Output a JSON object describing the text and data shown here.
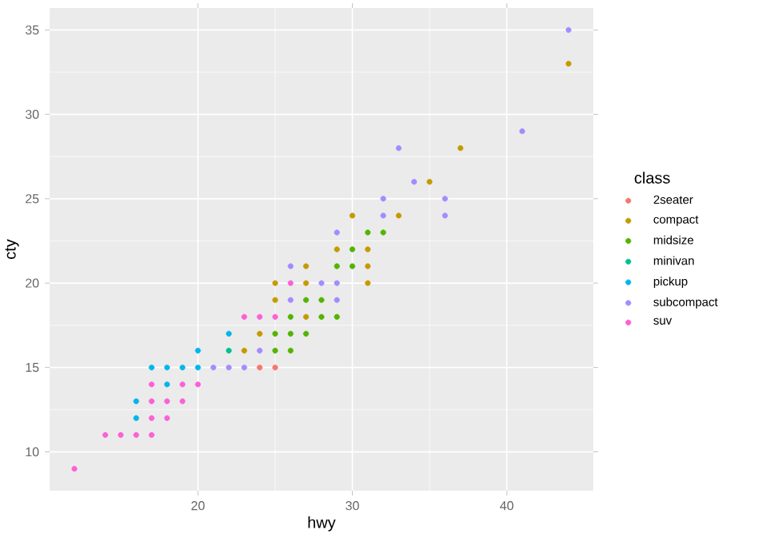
{
  "chart_data": {
    "type": "scatter",
    "xlabel": "hwy",
    "ylabel": "cty",
    "legend_title": "class",
    "xlim": [
      10.4,
      45.6
    ],
    "ylim": [
      7.7,
      36.3
    ],
    "xticks": [
      20,
      30,
      40
    ],
    "yticks": [
      10,
      15,
      20,
      25,
      30,
      35
    ],
    "grid": true,
    "legend": "right",
    "series": [
      {
        "name": "2seater",
        "color": "#F8766D",
        "x": [
          24,
          25
        ],
        "values": [
          15,
          15
        ]
      },
      {
        "name": "compact",
        "color": "#C49A00",
        "x": [
          23,
          24,
          27,
          25,
          25,
          27,
          31,
          27,
          31,
          29,
          31,
          30,
          33,
          35,
          37,
          44
        ],
        "values": [
          16,
          17,
          18,
          19,
          20,
          20,
          20,
          21,
          21,
          22,
          22,
          24,
          24,
          26,
          28,
          33
        ]
      },
      {
        "name": "midsize",
        "color": "#53B400",
        "x": [
          25,
          26,
          25,
          26,
          27,
          26,
          28,
          29,
          27,
          28,
          29,
          30,
          30,
          31,
          32
        ],
        "values": [
          16,
          16,
          17,
          17,
          17,
          18,
          18,
          18,
          19,
          19,
          21,
          21,
          22,
          23,
          23
        ]
      },
      {
        "name": "minivan",
        "color": "#00C094",
        "x": [
          22
        ],
        "values": [
          16
        ]
      },
      {
        "name": "pickup",
        "color": "#00B6EB",
        "x": [
          16,
          16,
          18,
          17,
          18,
          19,
          20,
          20,
          22
        ],
        "values": [
          12,
          13,
          14,
          15,
          15,
          15,
          15,
          16,
          17
        ]
      },
      {
        "name": "subcompact",
        "color": "#A58AFF",
        "x": [
          21,
          22,
          23,
          24,
          26,
          29,
          28,
          29,
          26,
          29,
          32,
          36,
          32,
          36,
          34,
          33,
          41,
          44
        ],
        "values": [
          15,
          15,
          15,
          16,
          19,
          19,
          20,
          20,
          21,
          23,
          24,
          24,
          25,
          25,
          26,
          28,
          29,
          35
        ]
      },
      {
        "name": "suv",
        "color": "#FB61D7",
        "x": [
          12,
          14,
          15,
          16,
          17,
          17,
          18,
          17,
          18,
          19,
          17,
          19,
          20,
          23,
          24,
          25,
          26
        ],
        "values": [
          9,
          11,
          11,
          11,
          11,
          12,
          12,
          13,
          13,
          13,
          14,
          14,
          14,
          18,
          18,
          18,
          20
        ]
      }
    ]
  }
}
